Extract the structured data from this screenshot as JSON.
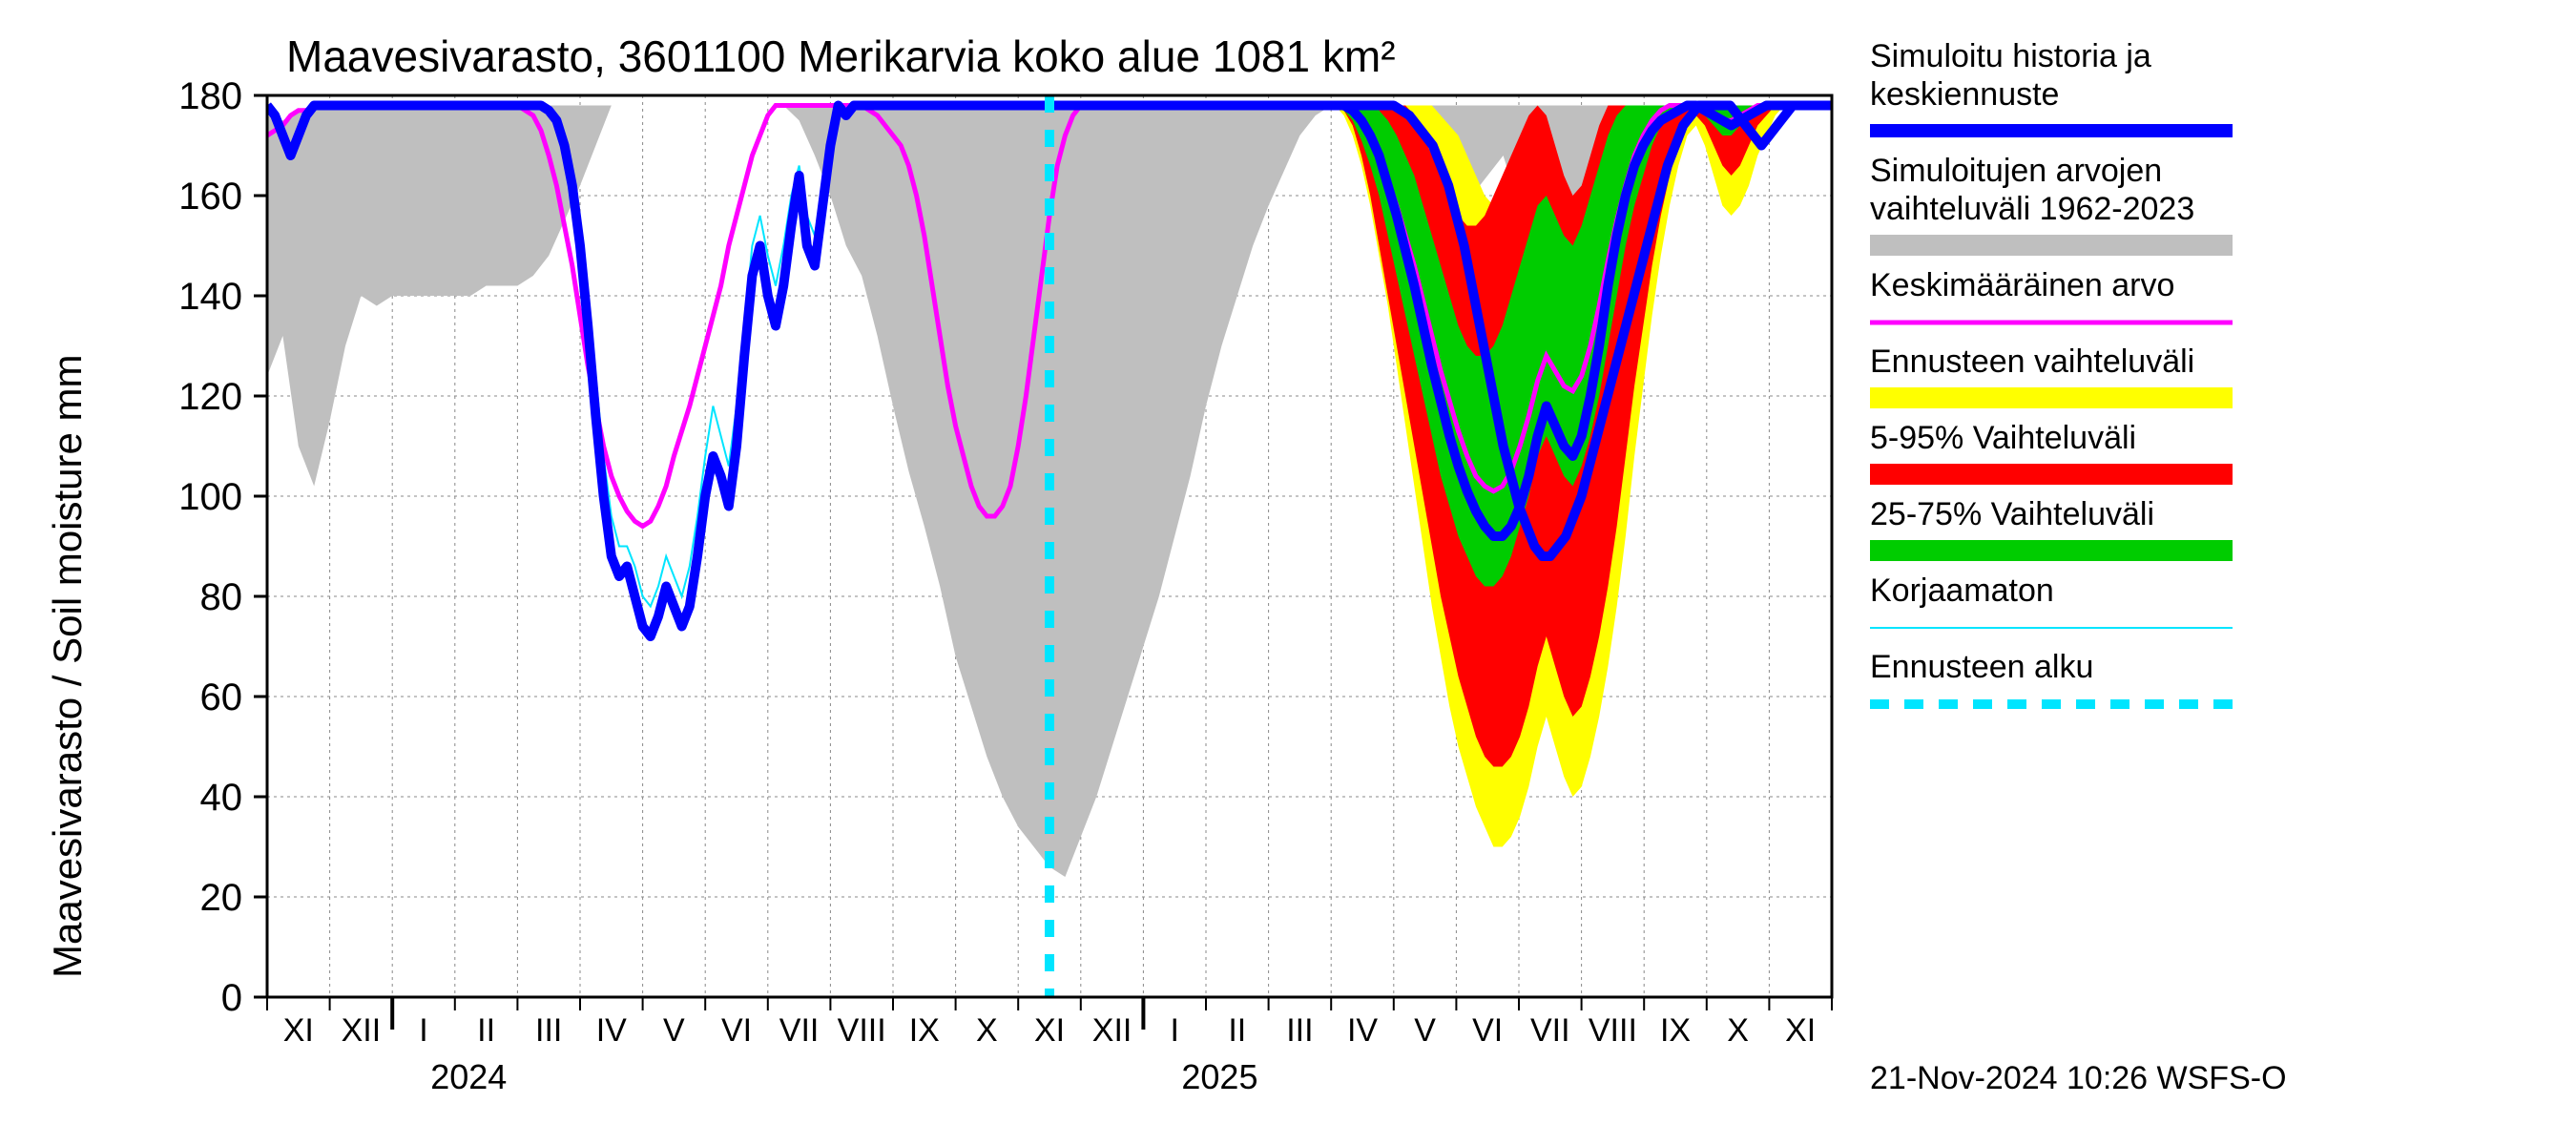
{
  "chart": {
    "type": "line",
    "title": "Maavesivarasto, 3601100 Merikarvia koko alue 1081 km²",
    "y_axis_label": "Maavesivarasto / Soil moisture   mm",
    "ylim": [
      0,
      180
    ],
    "ytick_step": 20,
    "yticks": [
      0,
      20,
      40,
      60,
      80,
      100,
      120,
      140,
      160,
      180
    ],
    "x_months": [
      "XI",
      "XII",
      "I",
      "II",
      "III",
      "IV",
      "V",
      "VI",
      "VII",
      "VIII",
      "IX",
      "X",
      "XI",
      "XII",
      "I",
      "II",
      "III",
      "IV",
      "V",
      "VI",
      "VII",
      "VIII",
      "IX",
      "X",
      "XI"
    ],
    "x_year_breaks": [
      {
        "label": "2024",
        "at_index": 2
      },
      {
        "label": "2025",
        "at_index": 14
      }
    ],
    "forecast_start_index": 12.5,
    "footer": "21-Nov-2024 10:26 WSFS-O",
    "plot_bg": "#ffffff",
    "grid_color": "#808080",
    "axis_color": "#000000",
    "title_fontsize": 46,
    "label_fontsize": 42,
    "tick_fontsize": 40,
    "legend_fontsize": 34,
    "legend": [
      {
        "key": "sim",
        "lines": [
          "Simuloitu historia ja",
          "keskiennuste"
        ],
        "color": "#0000ff",
        "style": "thickline"
      },
      {
        "key": "hist",
        "lines": [
          "Simuloitujen arvojen",
          "vaihteluväli 1962-2023"
        ],
        "color": "#bfbfbf",
        "style": "band"
      },
      {
        "key": "mean",
        "lines": [
          "Keskimääräinen arvo"
        ],
        "color": "#ff00ff",
        "style": "line"
      },
      {
        "key": "frange",
        "lines": [
          "Ennusteen vaihteluväli"
        ],
        "color": "#ffff00",
        "style": "band"
      },
      {
        "key": "p5_95",
        "lines": [
          "5-95% Vaihteluväli"
        ],
        "color": "#ff0000",
        "style": "band"
      },
      {
        "key": "p25_75",
        "lines": [
          "25-75% Vaihteluväli"
        ],
        "color": "#00cc00",
        "style": "band"
      },
      {
        "key": "uncorr",
        "lines": [
          "Korjaamaton"
        ],
        "color": "#00e5ff",
        "style": "thinline"
      },
      {
        "key": "fstart",
        "lines": [
          "Ennusteen alku"
        ],
        "color": "#00e5ff",
        "style": "dashed"
      }
    ],
    "colors": {
      "hist_band": "#bfbfbf",
      "yellow_band": "#ffff00",
      "red_band": "#ff0000",
      "green_band": "#00cc00",
      "sim_line": "#0000ff",
      "mean_line": "#ff00ff",
      "uncorr_line": "#00e5ff",
      "forecast_line": "#00e5ff"
    },
    "line_widths": {
      "sim": 10,
      "mean": 5,
      "uncorr": 2,
      "forecast_dash": 10
    },
    "series": {
      "hist_band": {
        "upper": [
          176,
          175,
          177,
          178,
          178,
          178,
          178,
          178,
          178,
          178,
          178,
          178,
          178,
          178,
          178,
          178,
          178,
          178,
          178,
          178,
          178,
          178,
          178,
          178,
          178,
          178,
          178,
          178,
          178,
          178,
          178,
          178,
          178,
          178,
          178,
          178,
          178,
          178,
          178,
          178,
          178,
          178,
          178,
          178,
          178,
          178,
          178,
          178,
          178,
          178,
          178,
          178,
          178,
          178,
          178,
          178,
          178,
          178,
          178,
          178,
          178,
          178,
          178,
          178,
          178,
          178,
          178,
          178,
          178,
          178,
          178,
          176,
          172,
          170,
          168,
          163,
          160,
          160,
          164,
          168,
          158,
          150,
          152,
          155,
          160,
          165,
          170,
          178,
          178,
          178,
          178,
          178,
          178,
          178,
          178,
          178,
          178,
          178,
          178,
          178,
          178
        ],
        "lower": [
          124,
          132,
          110,
          102,
          115,
          130,
          140,
          138,
          140,
          140,
          140,
          140,
          140,
          140,
          142,
          142,
          142,
          144,
          148,
          155,
          162,
          170,
          178,
          178,
          178,
          178,
          178,
          178,
          178,
          178,
          178,
          178,
          178,
          178,
          175,
          168,
          160,
          150,
          144,
          132,
          118,
          105,
          94,
          82,
          68,
          58,
          48,
          40,
          34,
          30,
          26,
          24,
          32,
          40,
          50,
          60,
          70,
          80,
          92,
          104,
          118,
          130,
          140,
          150,
          158,
          165,
          172,
          176,
          178,
          178,
          178,
          178,
          178,
          178,
          178,
          178,
          178,
          178,
          178,
          178,
          178,
          178,
          178,
          178,
          178,
          178,
          178,
          178,
          178,
          178,
          178,
          178,
          178,
          178,
          178,
          178,
          178,
          178,
          178,
          178,
          178
        ]
      },
      "mean": [
        172,
        173,
        174,
        176,
        177,
        177,
        178,
        178,
        178,
        178,
        178,
        178,
        178,
        178,
        178,
        178,
        178,
        178,
        178,
        178,
        178,
        178,
        178,
        178,
        178,
        178,
        178,
        178,
        178,
        178,
        178,
        178,
        178,
        177,
        176,
        173,
        168,
        162,
        154,
        146,
        136,
        126,
        118,
        110,
        104,
        100,
        97,
        95,
        94,
        95,
        98,
        102,
        108,
        113,
        118,
        124,
        130,
        136,
        142,
        150,
        156,
        162,
        168,
        172,
        176,
        178,
        178,
        178,
        178,
        178,
        178,
        178,
        178,
        178,
        178,
        178,
        178,
        177,
        176,
        174,
        172,
        170,
        166,
        160,
        152,
        142,
        132,
        122,
        114,
        108,
        102,
        98,
        96,
        96,
        98,
        102,
        110,
        120,
        132,
        144,
        156,
        166,
        172,
        176,
        178,
        178,
        178,
        178,
        178,
        178,
        178,
        178,
        178,
        178,
        178,
        178,
        178,
        178,
        178,
        178,
        178
      ],
      "sim": [
        178,
        176,
        172,
        168,
        172,
        176,
        178,
        178,
        178,
        178,
        178,
        178,
        178,
        178,
        178,
        178,
        178,
        178,
        178,
        178,
        178,
        178,
        178,
        178,
        178,
        178,
        178,
        178,
        178,
        178,
        178,
        178,
        178,
        178,
        178,
        178,
        177,
        175,
        170,
        162,
        150,
        134,
        116,
        100,
        88,
        84,
        86,
        80,
        74,
        72,
        76,
        82,
        78,
        74,
        78,
        88,
        100,
        108,
        104,
        98,
        110,
        128,
        144,
        150,
        140,
        134,
        142,
        154,
        164,
        150,
        146,
        158,
        170,
        178,
        176,
        178,
        178,
        178,
        178,
        178,
        178,
        178,
        178,
        178,
        178,
        178,
        178,
        178,
        178,
        178,
        178,
        178,
        178,
        178,
        178,
        178,
        178,
        178,
        178,
        178,
        178,
        178,
        178,
        178,
        178,
        178,
        178,
        178,
        178,
        178,
        178,
        178,
        178,
        178,
        178,
        178,
        178,
        178,
        178,
        178,
        178,
        178,
        178,
        178,
        178,
        178,
        178,
        178,
        178,
        178,
        178,
        178,
        178,
        178,
        178,
        178,
        178,
        178,
        178,
        178,
        178,
        178,
        178,
        178,
        178,
        177,
        176,
        174,
        172,
        170,
        166,
        162,
        156,
        150,
        142,
        134,
        126,
        118,
        110,
        104,
        98,
        94,
        90,
        88,
        88,
        90,
        92,
        96,
        100,
        106,
        112,
        118,
        124,
        130,
        136,
        142,
        148,
        154,
        160,
        166,
        170,
        174,
        176,
        178,
        178,
        178,
        178,
        178,
        176,
        174,
        172,
        170,
        172,
        174,
        176,
        178,
        178,
        178,
        178,
        178,
        178
      ],
      "uncorr": [
        178,
        176,
        172,
        168,
        172,
        176,
        178,
        178,
        178,
        178,
        178,
        178,
        178,
        178,
        178,
        178,
        178,
        178,
        178,
        178,
        178,
        178,
        178,
        178,
        178,
        178,
        178,
        178,
        178,
        178,
        178,
        178,
        178,
        178,
        178,
        178,
        177,
        175,
        170,
        164,
        154,
        140,
        124,
        108,
        96,
        90,
        90,
        86,
        80,
        78,
        82,
        88,
        84,
        80,
        86,
        96,
        108,
        118,
        112,
        106,
        118,
        134,
        150,
        156,
        148,
        142,
        150,
        160,
        166,
        156,
        152,
        162,
        172,
        178,
        176,
        178,
        178,
        178,
        178,
        178,
        178,
        178,
        178,
        178,
        178,
        178,
        178,
        178,
        178,
        178,
        178,
        178,
        178,
        178,
        178,
        178,
        178,
        178,
        178,
        178,
        178
      ]
    },
    "forecast_bands": {
      "x_start_index": 16.5,
      "x_end_index": 24.8,
      "n": 60,
      "yellow_upper": [
        178,
        178,
        178,
        178,
        178,
        178,
        178,
        178,
        178,
        178,
        178,
        178,
        178,
        178,
        178,
        178,
        176,
        174,
        172,
        168,
        164,
        160,
        158,
        158,
        160,
        164,
        170,
        172,
        168,
        160,
        152,
        148,
        152,
        160,
        168,
        174,
        178,
        178,
        178,
        178,
        178,
        178,
        178,
        178,
        178,
        178,
        178,
        178,
        178,
        178,
        178,
        178,
        178,
        178,
        178,
        178,
        178,
        178,
        178,
        178
      ],
      "yellow_lower": [
        178,
        178,
        178,
        178,
        178,
        176,
        172,
        166,
        158,
        148,
        138,
        126,
        114,
        102,
        90,
        78,
        68,
        58,
        50,
        44,
        38,
        34,
        30,
        30,
        32,
        36,
        42,
        50,
        56,
        50,
        44,
        40,
        42,
        48,
        56,
        66,
        78,
        92,
        108,
        122,
        136,
        148,
        158,
        166,
        172,
        174,
        170,
        164,
        158,
        156,
        158,
        162,
        168,
        172,
        176,
        178,
        178,
        178,
        178,
        178
      ],
      "red_upper": [
        178,
        178,
        178,
        178,
        178,
        178,
        178,
        178,
        178,
        178,
        178,
        178,
        178,
        176,
        172,
        168,
        164,
        160,
        156,
        154,
        154,
        156,
        160,
        164,
        168,
        172,
        176,
        178,
        176,
        170,
        164,
        160,
        162,
        168,
        174,
        178,
        178,
        178,
        178,
        178,
        178,
        178,
        178,
        178,
        178,
        178,
        178,
        178,
        178,
        178,
        178,
        178,
        178,
        178,
        178,
        178,
        178,
        178,
        178,
        178
      ],
      "red_lower": [
        178,
        178,
        178,
        178,
        178,
        177,
        174,
        168,
        160,
        150,
        140,
        130,
        120,
        110,
        100,
        90,
        80,
        72,
        64,
        58,
        52,
        48,
        46,
        46,
        48,
        52,
        58,
        66,
        72,
        66,
        60,
        56,
        58,
        64,
        72,
        82,
        94,
        108,
        122,
        134,
        146,
        156,
        164,
        170,
        174,
        176,
        174,
        170,
        166,
        164,
        166,
        170,
        174,
        176,
        178,
        178,
        178,
        178,
        178,
        178
      ],
      "green_upper": [
        178,
        178,
        178,
        178,
        178,
        178,
        178,
        178,
        178,
        177,
        175,
        172,
        168,
        164,
        158,
        152,
        146,
        140,
        134,
        130,
        128,
        128,
        130,
        134,
        140,
        146,
        152,
        158,
        160,
        156,
        152,
        150,
        154,
        160,
        166,
        172,
        176,
        178,
        178,
        178,
        178,
        178,
        178,
        178,
        178,
        178,
        178,
        178,
        178,
        178,
        178,
        178,
        178,
        178,
        178,
        178,
        178,
        178,
        178,
        178
      ],
      "green_lower": [
        178,
        178,
        178,
        178,
        178,
        177,
        175,
        171,
        166,
        160,
        152,
        144,
        136,
        128,
        120,
        112,
        104,
        98,
        92,
        88,
        84,
        82,
        82,
        84,
        88,
        94,
        100,
        108,
        112,
        108,
        104,
        102,
        106,
        112,
        120,
        130,
        140,
        150,
        158,
        164,
        170,
        174,
        176,
        178,
        178,
        178,
        176,
        174,
        172,
        172,
        174,
        176,
        178,
        178,
        178,
        178,
        178,
        178,
        178,
        178
      ]
    },
    "forecast_mean": [
      178,
      178,
      178,
      178,
      178,
      178,
      177,
      175,
      172,
      168,
      163,
      158,
      152,
      146,
      139,
      132,
      125,
      119,
      113,
      108,
      104,
      102,
      101,
      102,
      105,
      110,
      116,
      123,
      128,
      125,
      122,
      121,
      124,
      130,
      138,
      147,
      155,
      162,
      168,
      172,
      175,
      177,
      178,
      178,
      178,
      178,
      177,
      176,
      175,
      175,
      176,
      177,
      178,
      178,
      178,
      178,
      178,
      178,
      178,
      178
    ],
    "forecast_sim": [
      178,
      178,
      178,
      178,
      178,
      178,
      177,
      175,
      172,
      168,
      162,
      156,
      149,
      142,
      134,
      126,
      119,
      112,
      106,
      101,
      97,
      94,
      92,
      92,
      94,
      98,
      104,
      112,
      118,
      114,
      110,
      108,
      112,
      120,
      130,
      142,
      152,
      160,
      166,
      170,
      173,
      175,
      176,
      177,
      178,
      178,
      177,
      176,
      175,
      174,
      175,
      176,
      177,
      178,
      178,
      178,
      178,
      178,
      178,
      178
    ]
  }
}
